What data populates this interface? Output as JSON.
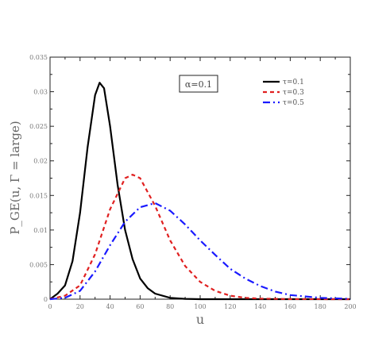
{
  "chart_data": {
    "type": "line",
    "title": "",
    "xlabel": "u",
    "ylabel": "P_GE(u, Γ = large)",
    "xlim": [
      0,
      200
    ],
    "ylim": [
      0,
      0.035
    ],
    "x_ticks": [
      "0",
      "20",
      "40",
      "60",
      "80",
      "100",
      "120",
      "140",
      "160",
      "180",
      "200"
    ],
    "y_ticks": [
      "0",
      "0.005",
      "0.01",
      "0.015",
      "0.02",
      "0.025",
      "0.03",
      "0.035"
    ],
    "annotation": "α=0.1",
    "legend_position": "top-right",
    "grid": false,
    "series": [
      {
        "name": "τ=0.1",
        "color": "#000000",
        "dash": "solid",
        "points": [
          [
            0,
            0
          ],
          [
            5,
            0.0008
          ],
          [
            10,
            0.002
          ],
          [
            15,
            0.0055
          ],
          [
            20,
            0.0125
          ],
          [
            25,
            0.022
          ],
          [
            30,
            0.0295
          ],
          [
            33,
            0.0313
          ],
          [
            36,
            0.0305
          ],
          [
            40,
            0.025
          ],
          [
            45,
            0.0165
          ],
          [
            50,
            0.01
          ],
          [
            55,
            0.0058
          ],
          [
            60,
            0.003
          ],
          [
            65,
            0.0016
          ],
          [
            70,
            0.0008
          ],
          [
            80,
            0.0002
          ],
          [
            90,
            5e-05
          ],
          [
            100,
            0
          ],
          [
            200,
            0
          ]
        ]
      },
      {
        "name": "τ=0.3",
        "color": "#e02020",
        "dash": "dashed",
        "points": [
          [
            0,
            0
          ],
          [
            10,
            0.0005
          ],
          [
            20,
            0.002
          ],
          [
            30,
            0.0065
          ],
          [
            40,
            0.013
          ],
          [
            50,
            0.0175
          ],
          [
            55,
            0.018
          ],
          [
            60,
            0.0175
          ],
          [
            70,
            0.0135
          ],
          [
            80,
            0.0085
          ],
          [
            90,
            0.0048
          ],
          [
            100,
            0.0025
          ],
          [
            110,
            0.0012
          ],
          [
            120,
            0.0005
          ],
          [
            130,
            0.0002
          ],
          [
            140,
            8e-05
          ],
          [
            160,
            1e-05
          ],
          [
            200,
            0
          ]
        ]
      },
      {
        "name": "τ=0.5",
        "color": "#1a1aff",
        "dash": "dashdot",
        "points": [
          [
            0,
            0
          ],
          [
            10,
            0.0002
          ],
          [
            20,
            0.0012
          ],
          [
            30,
            0.004
          ],
          [
            40,
            0.0078
          ],
          [
            50,
            0.0112
          ],
          [
            60,
            0.0133
          ],
          [
            70,
            0.0139
          ],
          [
            80,
            0.0128
          ],
          [
            90,
            0.0108
          ],
          [
            100,
            0.0085
          ],
          [
            110,
            0.0064
          ],
          [
            120,
            0.0044
          ],
          [
            130,
            0.003
          ],
          [
            140,
            0.0019
          ],
          [
            150,
            0.0011
          ],
          [
            160,
            0.0006
          ],
          [
            180,
            0.0002
          ],
          [
            200,
            5e-05
          ]
        ]
      }
    ]
  }
}
